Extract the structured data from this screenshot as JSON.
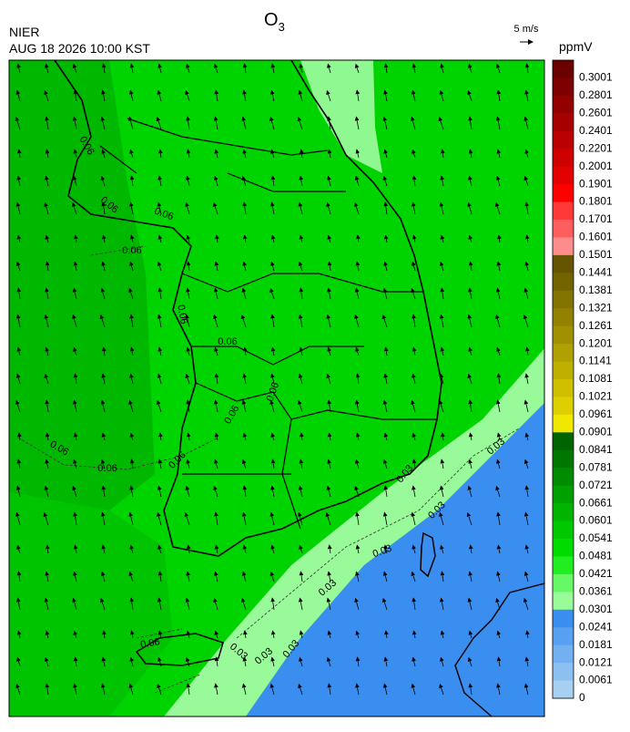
{
  "header": {
    "agency": "NIER",
    "datetime": "AUG 18 2026 10:00 KST",
    "title": {
      "main": "O",
      "subscript": "3"
    },
    "wind_scale": "5 m/s"
  },
  "colorbar": {
    "unit": "ppmV",
    "labels": [
      "0.3001",
      "0.2801",
      "0.2601",
      "0.2401",
      "0.2201",
      "0.2001",
      "0.1901",
      "0.1801",
      "0.1701",
      "0.1601",
      "0.1501",
      "0.1441",
      "0.1381",
      "0.1321",
      "0.1261",
      "0.1201",
      "0.1141",
      "0.1081",
      "0.1021",
      "0.0961",
      "0.0901",
      "0.0841",
      "0.0781",
      "0.0721",
      "0.0661",
      "0.0601",
      "0.0541",
      "0.0481",
      "0.0421",
      "0.0361",
      "0.0301",
      "0.0241",
      "0.0181",
      "0.0121",
      "0.0061",
      "0"
    ],
    "colors": [
      "#6b0000",
      "#7e0000",
      "#920000",
      "#a60000",
      "#ba0000",
      "#ce0000",
      "#e20000",
      "#ff0000",
      "#ff3838",
      "#ff5e5e",
      "#ff8c8c",
      "#665500",
      "#746400",
      "#837300",
      "#928200",
      "#a19100",
      "#b0a000",
      "#bfb000",
      "#cec000",
      "#ddd000",
      "#f0e800",
      "#006400",
      "#007800",
      "#008c00",
      "#00a000",
      "#00b400",
      "#00c800",
      "#00dc00",
      "#20ee20",
      "#66f866",
      "#98fc98",
      "#3a8ef0",
      "#58a0f0",
      "#72b0f0",
      "#8cc0f0",
      "#a6d0f0"
    ]
  },
  "contour_labels": [
    "0.06",
    "0.06",
    "0.06",
    "0.06",
    "0.06",
    "0.06",
    "0.06",
    "0.06",
    "0.06",
    "0.06",
    "0.06",
    "0.06",
    "0.03",
    "0.03",
    "0.03",
    "0.03",
    "0.03",
    "0.03",
    "0.03",
    "0.03"
  ]
}
